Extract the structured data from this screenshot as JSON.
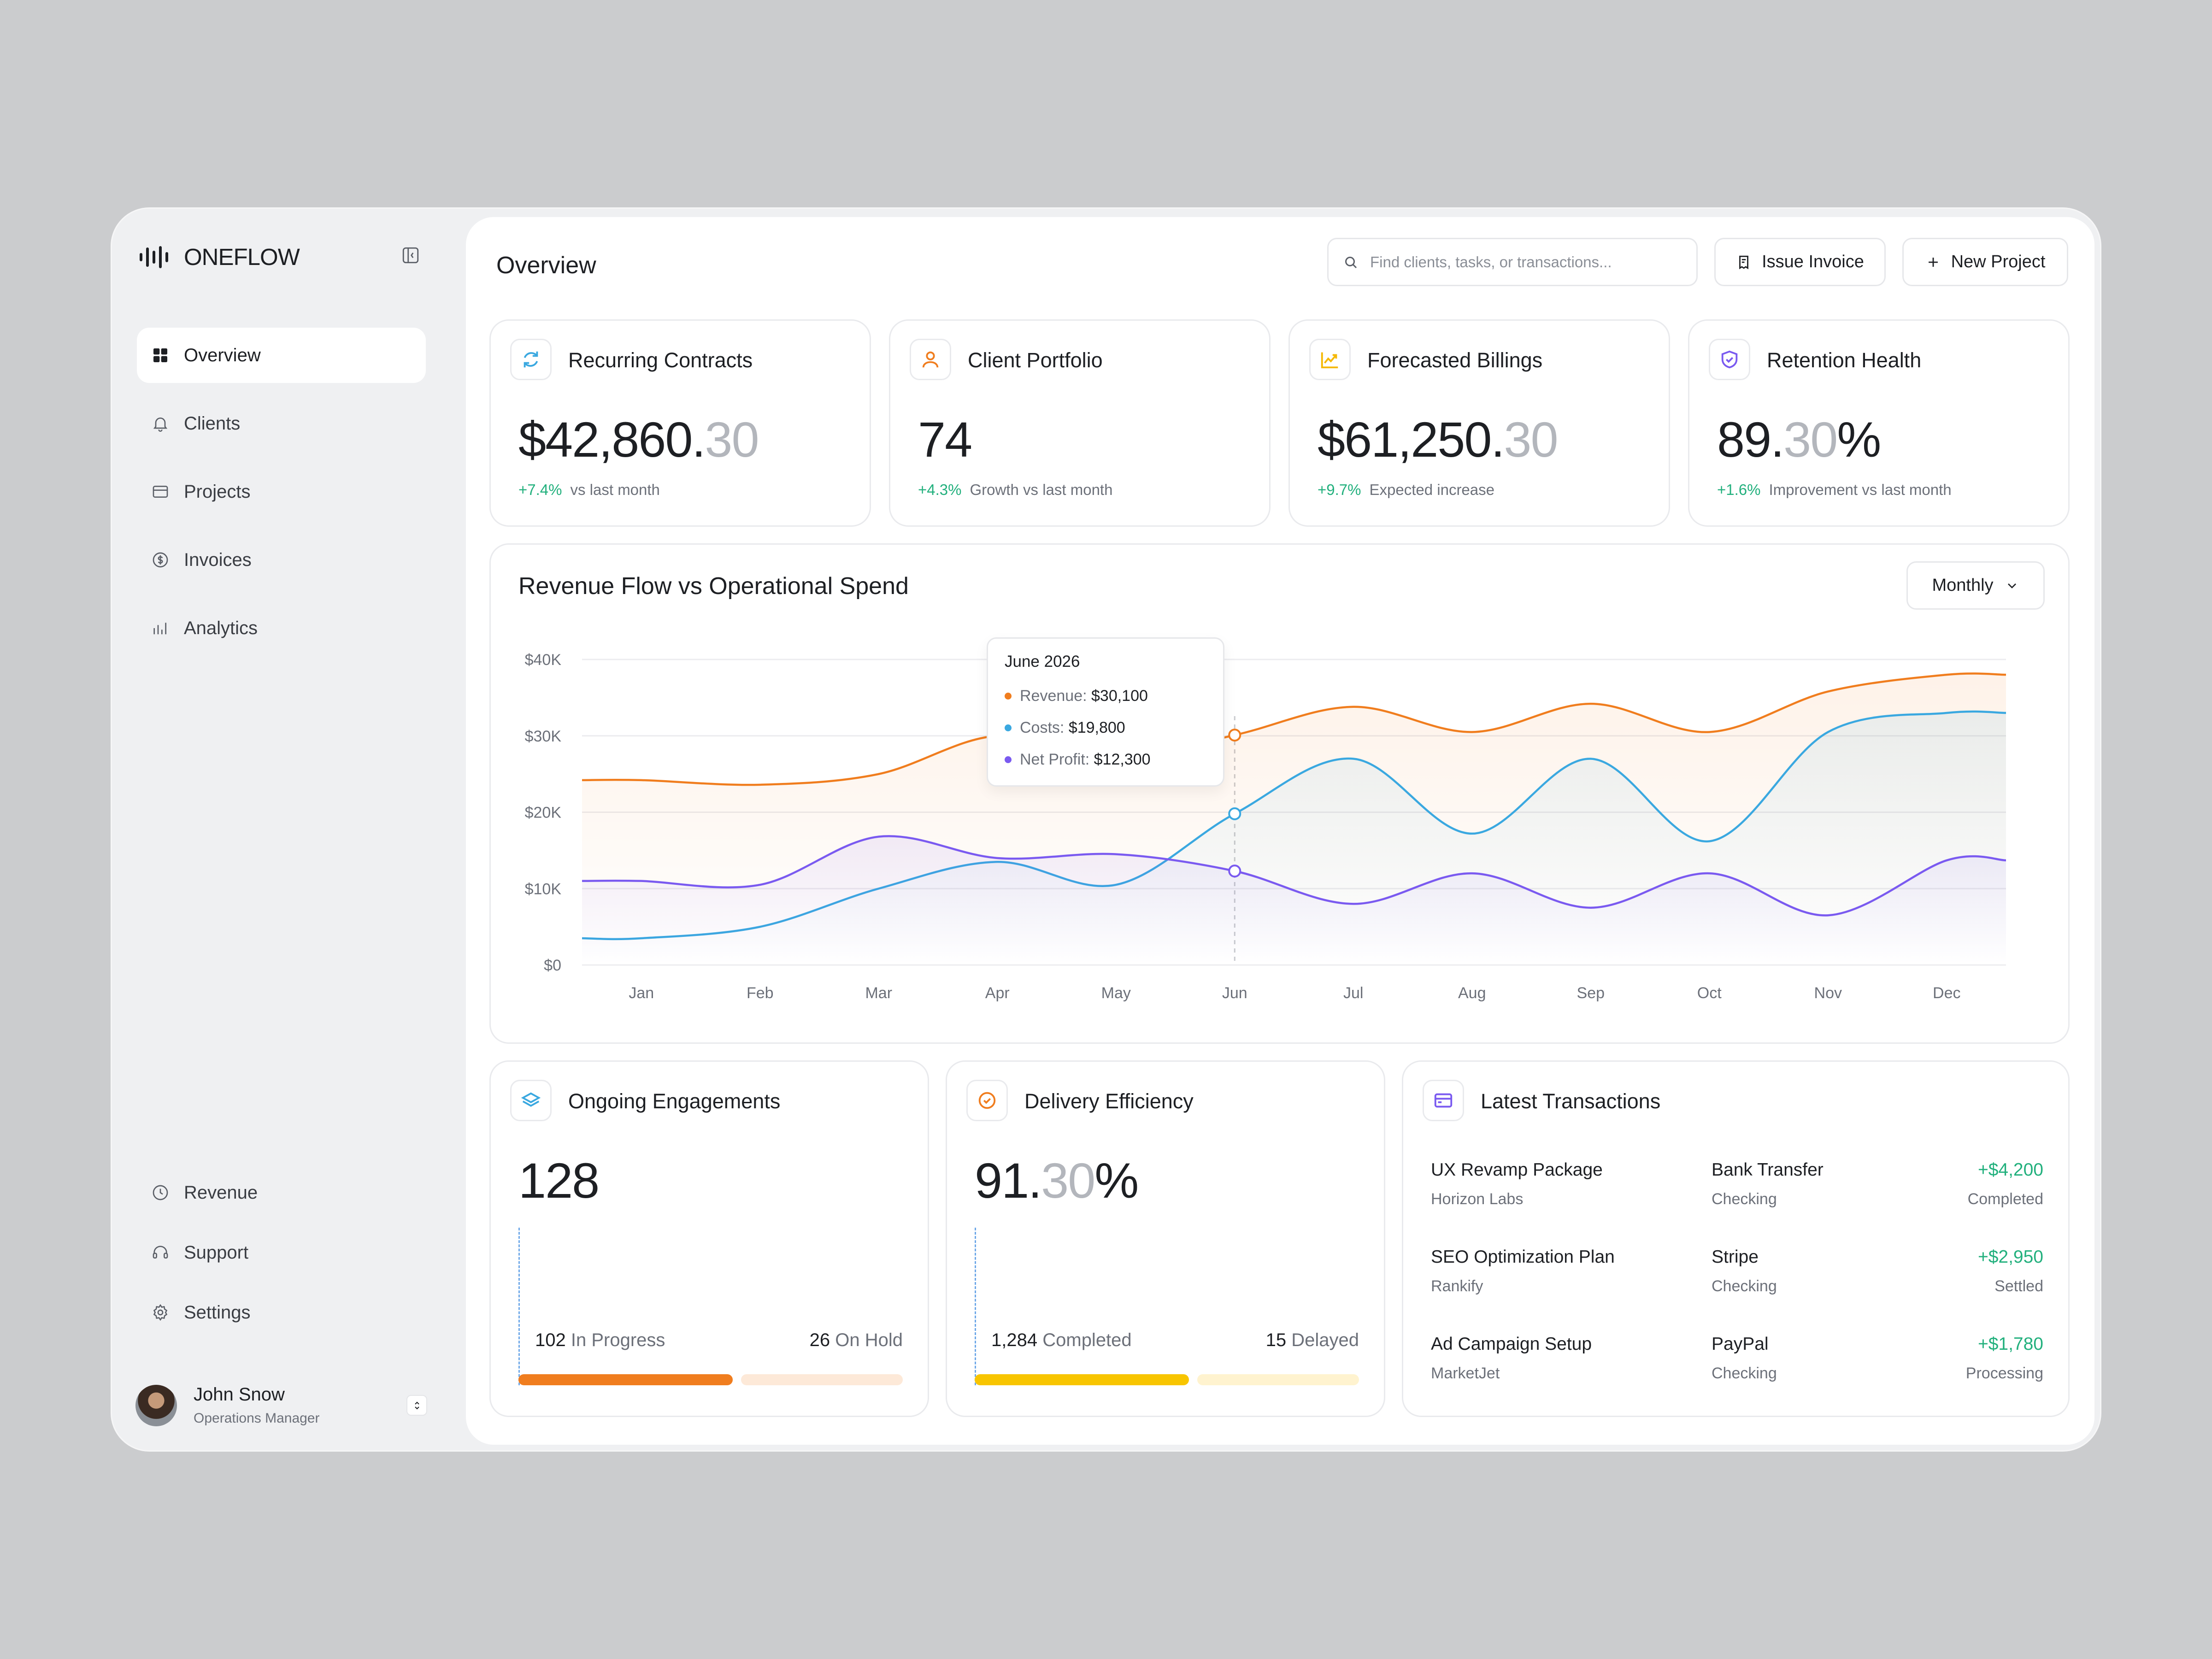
{
  "brand": {
    "name": "ONEFLOW"
  },
  "sidebar": {
    "items": [
      {
        "label": "Overview",
        "icon": "grid-icon",
        "active": true
      },
      {
        "label": "Clients",
        "icon": "bell-icon"
      },
      {
        "label": "Projects",
        "icon": "folder-icon"
      },
      {
        "label": "Invoices",
        "icon": "dollar-circle-icon"
      },
      {
        "label": "Analytics",
        "icon": "bar-chart-icon"
      }
    ],
    "bottom_items": [
      {
        "label": "Revenue",
        "icon": "clock-icon"
      },
      {
        "label": "Support",
        "icon": "headset-icon"
      },
      {
        "label": "Settings",
        "icon": "gear-icon"
      }
    ]
  },
  "user": {
    "name": "John Snow",
    "role": "Operations Manager"
  },
  "header": {
    "title": "Overview",
    "search_placeholder": "Find clients, tasks, or transactions...",
    "issue_invoice": "Issue Invoice",
    "new_project": "New Project"
  },
  "stats": [
    {
      "title": "Recurring Contracts",
      "value_main": "$42,860.",
      "value_dim": "30",
      "value_suffix": "",
      "change": "+7.4%",
      "caption": "vs last month",
      "icon": "refresh-icon",
      "icon_color": "#3aa8e0"
    },
    {
      "title": "Client Portfolio",
      "value_main": "74",
      "value_dim": "",
      "value_suffix": "",
      "change": "+4.3%",
      "caption": "Growth vs last month",
      "icon": "user-icon",
      "icon_color": "#f07d1e"
    },
    {
      "title": "Forecasted Billings",
      "value_main": "$61,250.",
      "value_dim": "30",
      "value_suffix": "",
      "change": "+9.7%",
      "caption": "Expected increase",
      "icon": "trend-up-icon",
      "icon_color": "#f5b800"
    },
    {
      "title": "Retention Health",
      "value_main": "89.",
      "value_dim": "30",
      "value_suffix": "%",
      "change": "+1.6%",
      "caption": "Improvement vs last month",
      "icon": "shield-check-icon",
      "icon_color": "#7a5af0"
    }
  ],
  "chart": {
    "title": "Revenue Flow vs Operational Spend",
    "period": "Monthly",
    "tooltip": {
      "title": "June 2026",
      "rows": [
        {
          "label": "Revenue:",
          "value": "$30,100",
          "color": "#f07d1e"
        },
        {
          "label": "Costs:",
          "value": "$19,800",
          "color": "#3aa8e0"
        },
        {
          "label": "Net Profit:",
          "value": "$12,300",
          "color": "#7a5af0"
        }
      ]
    }
  },
  "chart_data": {
    "type": "line",
    "title": "Revenue Flow vs Operational Spend",
    "categories": [
      "Jan",
      "Feb",
      "Mar",
      "Apr",
      "May",
      "Jun",
      "Jul",
      "Aug",
      "Sep",
      "Oct",
      "Nov",
      "Dec"
    ],
    "y_ticks": [
      "$0",
      "$10K",
      "$20K",
      "$30K",
      "$40K"
    ],
    "ylim": [
      0,
      40000
    ],
    "grid": true,
    "series": [
      {
        "name": "Revenue",
        "color": "#f07d1e",
        "values": [
          24200,
          23600,
          25000,
          30000,
          27000,
          30100,
          33800,
          30500,
          34200,
          30500,
          35800,
          38000
        ]
      },
      {
        "name": "Costs",
        "color": "#3aa8e0",
        "values": [
          3500,
          5000,
          10000,
          13500,
          10500,
          19800,
          27000,
          17200,
          27000,
          16200,
          30500,
          33000
        ]
      },
      {
        "name": "Net Profit",
        "color": "#7a5af0",
        "values": [
          11000,
          10500,
          16800,
          14000,
          14500,
          12300,
          8000,
          12000,
          7500,
          12000,
          6500,
          13700
        ]
      }
    ],
    "highlight": "Jun"
  },
  "engagements": {
    "title": "Ongoing Engagements",
    "value": "128",
    "left_count": "102",
    "left_label": "In Progress",
    "right_count": "26",
    "right_label": "On Hold",
    "progress": 0.57,
    "color": "#f07d1e",
    "track": "#fde9d8",
    "icon": "layers-icon"
  },
  "delivery": {
    "title": "Delivery Efficiency",
    "value_main": "91.",
    "value_dim": "30",
    "value_suffix": "%",
    "left_count": "1,284",
    "left_label": "Completed",
    "right_count": "15",
    "right_label": "Delayed",
    "progress": 0.57,
    "color": "#f8c500",
    "track": "#fff3cf",
    "icon": "check-circle-icon"
  },
  "transactions": {
    "title": "Latest Transactions",
    "icon": "card-icon",
    "rows": [
      {
        "name": "UX Revamp Package",
        "client": "Horizon Labs",
        "method": "Bank Transfer",
        "account": "Checking",
        "amount": "+$4,200",
        "status": "Completed"
      },
      {
        "name": "SEO Optimization Plan",
        "client": "Rankify",
        "method": "Stripe",
        "account": "Checking",
        "amount": "+$2,950",
        "status": "Settled"
      },
      {
        "name": "Ad Campaign Setup",
        "client": "MarketJet",
        "method": "PayPal",
        "account": "Checking",
        "amount": "+$1,780",
        "status": "Processing"
      }
    ]
  }
}
